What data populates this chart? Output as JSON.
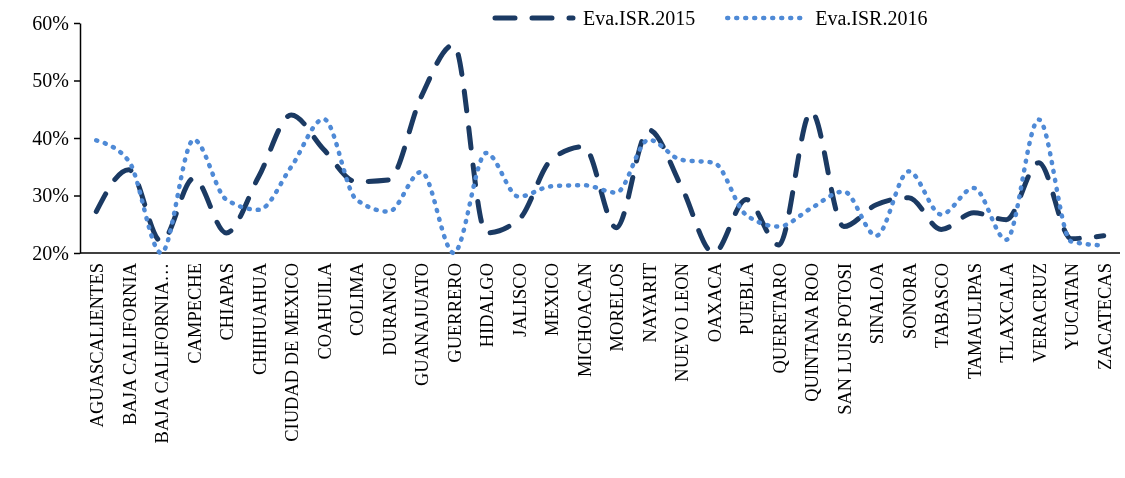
{
  "chart_data": {
    "type": "line",
    "categories": [
      "AGUASCALIENTES",
      "BAJA CALIFORNIA",
      "BAJA CALIFORNIA…",
      "CAMPECHE",
      "CHIAPAS",
      "CHIHUAHUA",
      "CIUDAD DE MEXICO",
      "COAHUILA",
      "COLIMA",
      "DURANGO",
      "GUANAJUATO",
      "GUERRERO",
      "HIDALGO",
      "JALISCO",
      "MEXICO",
      "MICHOACAN",
      "MORELOS",
      "NAYARIT",
      "NUEVO LEON",
      "OAXACA",
      "PUEBLA",
      "QUERETARO",
      "QUINTANA ROO",
      "SAN LUIS POTOSI",
      "SINALOA",
      "SONORA",
      "TABASCO",
      "TAMAULIPAS",
      "TLAXCALA",
      "VERACRUZ",
      "YUCATAN",
      "ZACATECAS"
    ],
    "series": [
      {
        "name": "Eva.ISR.2015",
        "color": "#1b3a63",
        "line_style": "dashed",
        "values": [
          27.2,
          34.5,
          22,
          33,
          23.5,
          33.3,
          44,
          38,
          32.4,
          32.7,
          47.2,
          56.2,
          23.5,
          25.8,
          36.2,
          38.5,
          24.4,
          41.4,
          31.6,
          20,
          29.3,
          21.4,
          44.6,
          24.6,
          28.4,
          29.6,
          24.1,
          27,
          25.8,
          35.7,
          22.5,
          23
        ]
      },
      {
        "name": "Eva.ISR.2016",
        "color": "#4f8ad6",
        "line_style": "dotted",
        "values": [
          39.6,
          36,
          20,
          39.7,
          29.3,
          27.5,
          35,
          43.3,
          29.3,
          27.2,
          34.1,
          20,
          37.4,
          29.8,
          31.6,
          31.8,
          30.5,
          39.7,
          36.2,
          35.7,
          26.6,
          24.6,
          27.8,
          30.7,
          23,
          34.2,
          26.7,
          31.3,
          22.3,
          43.2,
          22,
          21.3
        ]
      }
    ],
    "ylim": [
      20,
      60
    ],
    "yticks": [
      {
        "value": 20,
        "label": "20%"
      },
      {
        "value": 30,
        "label": "30%"
      },
      {
        "value": 40,
        "label": "40%"
      },
      {
        "value": 50,
        "label": "50%"
      },
      {
        "value": 60,
        "label": "60%"
      }
    ],
    "grid": false,
    "legend": "top right",
    "marker": "none"
  }
}
